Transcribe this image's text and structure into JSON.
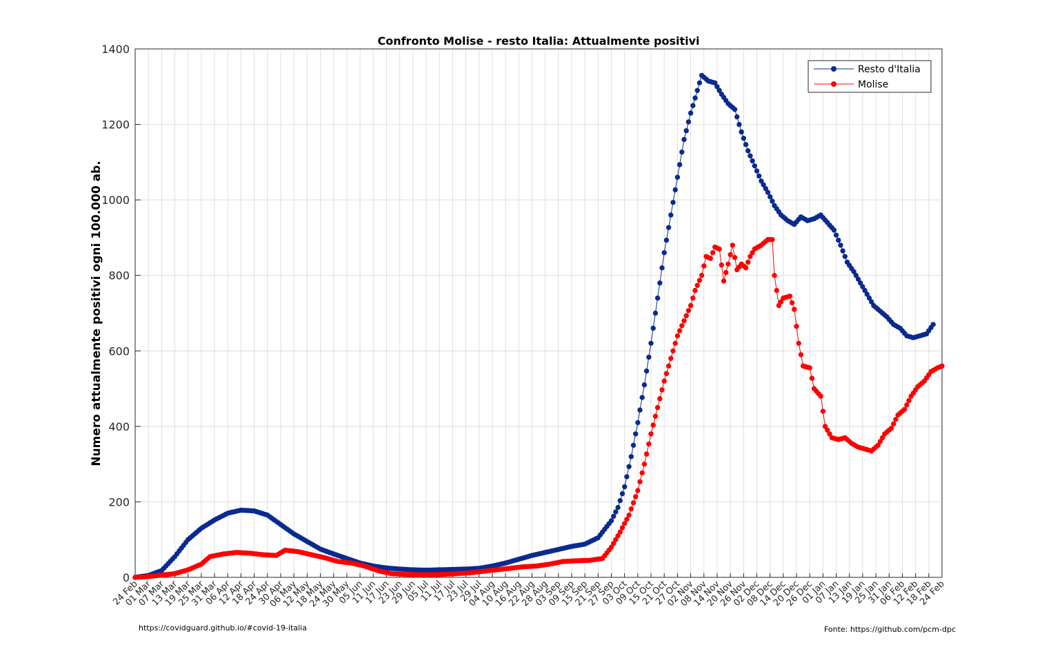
{
  "chart_data": {
    "type": "line",
    "title": "Confronto Molise - resto Italia: Attualmente positivi",
    "xlabel": "",
    "ylabel": "Numero attualmente positivi ogni 100.000 ab.",
    "ylim": [
      0,
      1400
    ],
    "yticks": [
      0,
      200,
      400,
      600,
      800,
      1000,
      1200,
      1400
    ],
    "xrange_days": [
      0,
      366
    ],
    "grid": true,
    "legend_position": "top-right",
    "xtick_labels": [
      "24 Feb",
      "01 Mar",
      "07 Mar",
      "13 Mar",
      "19 Mar",
      "25 Mar",
      "31 Mar",
      "06 Apr",
      "12 Apr",
      "18 Apr",
      "24 Apr",
      "30 Apr",
      "06 May",
      "12 May",
      "18 May",
      "24 May",
      "30 May",
      "05 Jun",
      "11 Jun",
      "17 Jun",
      "23 Jun",
      "29 Jun",
      "05 Jul",
      "11 Jul",
      "17 Jul",
      "23 Jul",
      "29 Jul",
      "04 Aug",
      "10 Aug",
      "16 Aug",
      "22 Aug",
      "28 Aug",
      "03 Sep",
      "09 Sep",
      "15 Sep",
      "21 Sep",
      "27 Sep",
      "03 Oct",
      "09 Oct",
      "15 Oct",
      "21 Oct",
      "27 Oct",
      "02 Nov",
      "08 Nov",
      "14 Nov",
      "20 Nov",
      "26 Nov",
      "02 Dec",
      "08 Dec",
      "14 Dec",
      "20 Dec",
      "26 Dec",
      "01 Jan",
      "07 Jan",
      "13 Jan",
      "19 Jan",
      "25 Jan",
      "31 Jan",
      "06 Feb",
      "12 Feb",
      "18 Feb",
      "24 Feb"
    ],
    "series": [
      {
        "name": "Resto d'Italia",
        "color": "#0a2a8f",
        "points": [
          [
            0,
            0
          ],
          [
            6,
            5
          ],
          [
            12,
            18
          ],
          [
            18,
            55
          ],
          [
            24,
            100
          ],
          [
            30,
            130
          ],
          [
            36,
            152
          ],
          [
            42,
            170
          ],
          [
            48,
            178
          ],
          [
            54,
            176
          ],
          [
            60,
            165
          ],
          [
            66,
            140
          ],
          [
            72,
            115
          ],
          [
            78,
            95
          ],
          [
            84,
            75
          ],
          [
            90,
            62
          ],
          [
            96,
            50
          ],
          [
            102,
            38
          ],
          [
            108,
            30
          ],
          [
            114,
            25
          ],
          [
            120,
            22
          ],
          [
            126,
            20
          ],
          [
            132,
            19
          ],
          [
            138,
            20
          ],
          [
            144,
            21
          ],
          [
            150,
            22
          ],
          [
            156,
            24
          ],
          [
            162,
            30
          ],
          [
            168,
            38
          ],
          [
            174,
            48
          ],
          [
            180,
            58
          ],
          [
            186,
            66
          ],
          [
            192,
            74
          ],
          [
            198,
            82
          ],
          [
            204,
            88
          ],
          [
            210,
            105
          ],
          [
            216,
            150
          ],
          [
            219,
            185
          ],
          [
            222,
            240
          ],
          [
            225,
            320
          ],
          [
            228,
            410
          ],
          [
            231,
            510
          ],
          [
            234,
            620
          ],
          [
            237,
            740
          ],
          [
            240,
            860
          ],
          [
            243,
            960
          ],
          [
            246,
            1060
          ],
          [
            249,
            1160
          ],
          [
            252,
            1230
          ],
          [
            255,
            1290
          ],
          [
            257,
            1330
          ],
          [
            260,
            1315
          ],
          [
            263,
            1310
          ],
          [
            266,
            1280
          ],
          [
            269,
            1255
          ],
          [
            272,
            1240
          ],
          [
            275,
            1180
          ],
          [
            278,
            1130
          ],
          [
            281,
            1090
          ],
          [
            284,
            1050
          ],
          [
            287,
            1020
          ],
          [
            290,
            985
          ],
          [
            293,
            960
          ],
          [
            296,
            945
          ],
          [
            299,
            935
          ],
          [
            302,
            955
          ],
          [
            305,
            945
          ],
          [
            308,
            950
          ],
          [
            311,
            960
          ],
          [
            314,
            940
          ],
          [
            317,
            920
          ],
          [
            320,
            880
          ],
          [
            323,
            835
          ],
          [
            326,
            810
          ],
          [
            329,
            780
          ],
          [
            332,
            750
          ],
          [
            335,
            720
          ],
          [
            338,
            705
          ],
          [
            341,
            690
          ],
          [
            344,
            670
          ],
          [
            347,
            660
          ],
          [
            350,
            640
          ],
          [
            353,
            635
          ],
          [
            356,
            640
          ],
          [
            359,
            645
          ],
          [
            362,
            670
          ]
        ]
      },
      {
        "name": "Molise",
        "color": "#ff0000",
        "points": [
          [
            0,
            0
          ],
          [
            6,
            2
          ],
          [
            12,
            6
          ],
          [
            18,
            10
          ],
          [
            24,
            20
          ],
          [
            30,
            35
          ],
          [
            34,
            55
          ],
          [
            40,
            62
          ],
          [
            46,
            66
          ],
          [
            52,
            64
          ],
          [
            58,
            60
          ],
          [
            64,
            58
          ],
          [
            68,
            72
          ],
          [
            74,
            68
          ],
          [
            80,
            60
          ],
          [
            86,
            52
          ],
          [
            92,
            42
          ],
          [
            98,
            38
          ],
          [
            104,
            30
          ],
          [
            110,
            18
          ],
          [
            116,
            10
          ],
          [
            122,
            8
          ],
          [
            128,
            7
          ],
          [
            134,
            7
          ],
          [
            140,
            8
          ],
          [
            146,
            10
          ],
          [
            152,
            12
          ],
          [
            158,
            16
          ],
          [
            164,
            20
          ],
          [
            170,
            24
          ],
          [
            176,
            28
          ],
          [
            182,
            30
          ],
          [
            188,
            35
          ],
          [
            194,
            42
          ],
          [
            200,
            44
          ],
          [
            206,
            45
          ],
          [
            212,
            50
          ],
          [
            216,
            80
          ],
          [
            220,
            120
          ],
          [
            224,
            165
          ],
          [
            228,
            230
          ],
          [
            231,
            300
          ],
          [
            234,
            380
          ],
          [
            237,
            450
          ],
          [
            240,
            520
          ],
          [
            243,
            580
          ],
          [
            246,
            640
          ],
          [
            249,
            680
          ],
          [
            252,
            720
          ],
          [
            254,
            760
          ],
          [
            257,
            800
          ],
          [
            259,
            850
          ],
          [
            261,
            845
          ],
          [
            263,
            875
          ],
          [
            265,
            870
          ],
          [
            267,
            785
          ],
          [
            269,
            830
          ],
          [
            271,
            880
          ],
          [
            273,
            815
          ],
          [
            275,
            830
          ],
          [
            277,
            820
          ],
          [
            279,
            850
          ],
          [
            281,
            870
          ],
          [
            284,
            880
          ],
          [
            287,
            895
          ],
          [
            289,
            895
          ],
          [
            290,
            800
          ],
          [
            292,
            720
          ],
          [
            294,
            740
          ],
          [
            297,
            745
          ],
          [
            299,
            710
          ],
          [
            301,
            620
          ],
          [
            303,
            560
          ],
          [
            306,
            555
          ],
          [
            308,
            500
          ],
          [
            311,
            480
          ],
          [
            313,
            400
          ],
          [
            316,
            370
          ],
          [
            319,
            365
          ],
          [
            322,
            370
          ],
          [
            325,
            355
          ],
          [
            328,
            345
          ],
          [
            331,
            340
          ],
          [
            334,
            335
          ],
          [
            337,
            350
          ],
          [
            340,
            380
          ],
          [
            343,
            395
          ],
          [
            346,
            430
          ],
          [
            349,
            445
          ],
          [
            352,
            480
          ],
          [
            355,
            505
          ],
          [
            358,
            520
          ],
          [
            361,
            545
          ],
          [
            364,
            555
          ],
          [
            366,
            560
          ]
        ]
      }
    ]
  },
  "footer": {
    "left": "https://covidguard.github.io/#covid-19-italia",
    "right": "Fonte: https://github.com/pcm-dpc"
  }
}
